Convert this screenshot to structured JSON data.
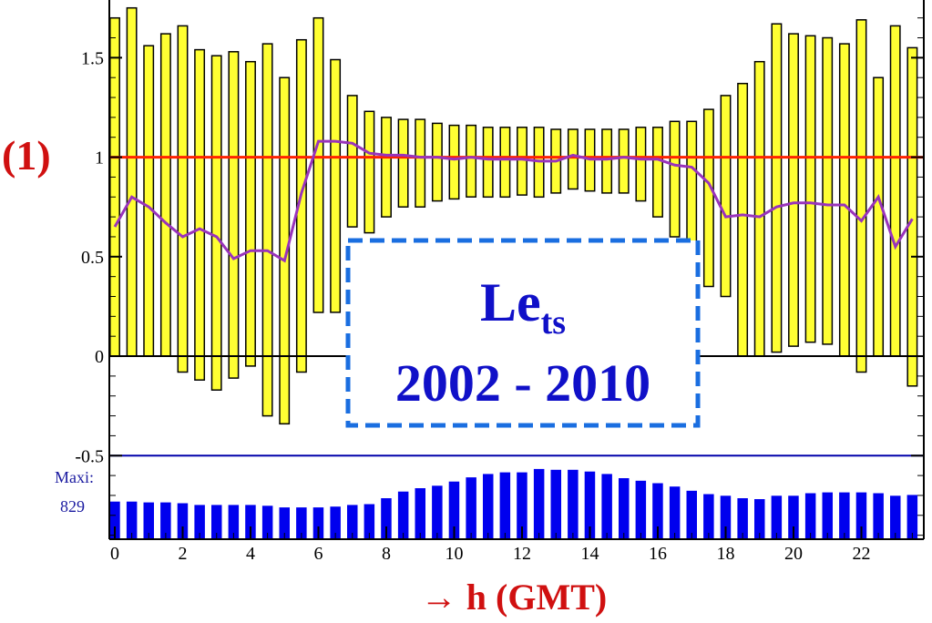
{
  "chart_data": {
    "type": "bar",
    "marker_label": "(1)",
    "x_axis_title": "→ h (GMT)",
    "x_ticks": [
      0,
      2,
      4,
      6,
      8,
      10,
      12,
      14,
      16,
      18,
      20,
      22
    ],
    "y_ticks": [
      "-0.5",
      "0",
      "0.5",
      "1",
      "1.5"
    ],
    "ylim": [
      -0.92,
      1.79
    ],
    "xlim": [
      0,
      23.5
    ],
    "grid": false,
    "reference_line": 1,
    "upper_panel": {
      "x": [
        0,
        0.5,
        1,
        1.5,
        2,
        2.5,
        3,
        3.5,
        4,
        4.5,
        5,
        5.5,
        6,
        6.5,
        7,
        7.5,
        8,
        8.5,
        9,
        9.5,
        10,
        10.5,
        11,
        11.5,
        12,
        12.5,
        13,
        13.5,
        14,
        14.5,
        15,
        15.5,
        16,
        16.5,
        17,
        17.5,
        18,
        18.5,
        19,
        19.5,
        20,
        20.5,
        21,
        21.5,
        22,
        22.5,
        23,
        23.5
      ],
      "bar_low": [
        0,
        0,
        0,
        0,
        -0.08,
        -0.12,
        -0.17,
        -0.11,
        -0.05,
        -0.3,
        -0.34,
        -0.08,
        0.22,
        0.22,
        0.65,
        0.62,
        0.7,
        0.75,
        0.75,
        0.78,
        0.79,
        0.8,
        0.8,
        0.8,
        0.81,
        0.8,
        0.82,
        0.84,
        0.83,
        0.82,
        0.82,
        0.78,
        0.7,
        0.6,
        0.5,
        0.35,
        0.3,
        0,
        0,
        0.02,
        0.05,
        0.07,
        0.06,
        0,
        -0.08,
        0,
        0,
        -0.15
      ],
      "bar_high": [
        1.7,
        1.75,
        1.56,
        1.62,
        1.66,
        1.54,
        1.51,
        1.53,
        1.48,
        1.57,
        1.4,
        1.59,
        1.7,
        1.49,
        1.31,
        1.23,
        1.2,
        1.19,
        1.19,
        1.17,
        1.16,
        1.16,
        1.15,
        1.15,
        1.15,
        1.15,
        1.14,
        1.14,
        1.14,
        1.14,
        1.14,
        1.15,
        1.15,
        1.18,
        1.18,
        1.24,
        1.31,
        1.37,
        1.48,
        1.67,
        1.62,
        1.61,
        1.6,
        1.57,
        1.69,
        1.4,
        1.66,
        1.55
      ],
      "mean_line": [
        0.65,
        0.8,
        0.75,
        0.67,
        0.6,
        0.64,
        0.6,
        0.49,
        0.53,
        0.53,
        0.48,
        0.82,
        1.08,
        1.08,
        1.07,
        1.02,
        1.01,
        1.01,
        1.0,
        1.0,
        0.99,
        1.0,
        0.99,
        0.99,
        0.99,
        0.98,
        0.98,
        1.01,
        0.99,
        0.99,
        1.0,
        0.99,
        0.99,
        0.96,
        0.95,
        0.87,
        0.7,
        0.71,
        0.7,
        0.75,
        0.77,
        0.77,
        0.76,
        0.76,
        0.68,
        0.8,
        0.55,
        0.69
      ]
    },
    "lower_panel": {
      "baseline": -0.5,
      "side_label": "Maxi:",
      "side_value": "829",
      "x": [
        0,
        0.5,
        1,
        1.5,
        2,
        2.5,
        3,
        3.5,
        4,
        4.5,
        5,
        5.5,
        6,
        6.5,
        7,
        7.5,
        8,
        8.5,
        9,
        9.5,
        10,
        10.5,
        11,
        11.5,
        12,
        12.5,
        13,
        13.5,
        14,
        14.5,
        15,
        15.5,
        16,
        16.5,
        17,
        17.5,
        18,
        18.5,
        19,
        19.5,
        20,
        20.5,
        21,
        21.5,
        22,
        22.5,
        23,
        23.5
      ],
      "values": [
        0.45,
        0.45,
        0.44,
        0.44,
        0.43,
        0.41,
        0.41,
        0.41,
        0.41,
        0.4,
        0.38,
        0.38,
        0.38,
        0.39,
        0.41,
        0.42,
        0.49,
        0.57,
        0.61,
        0.64,
        0.69,
        0.74,
        0.78,
        0.8,
        0.8,
        0.84,
        0.83,
        0.83,
        0.81,
        0.78,
        0.73,
        0.7,
        0.67,
        0.63,
        0.58,
        0.54,
        0.52,
        0.49,
        0.48,
        0.52,
        0.52,
        0.55,
        0.56,
        0.56,
        0.56,
        0.55,
        0.52,
        0.53
      ]
    },
    "annotation": {
      "label_base": "Le",
      "label_sub": "ts",
      "period": "2002 - 2010"
    }
  },
  "colors": {
    "yellow_bar": "#ffff33",
    "bar_outline": "#000000",
    "mean_line": "#9933bb",
    "reference_line": "#ff2200",
    "lower_bars": "#0000ee",
    "baseline_line": "#0000aa",
    "box_border": "#1a6ee0"
  }
}
